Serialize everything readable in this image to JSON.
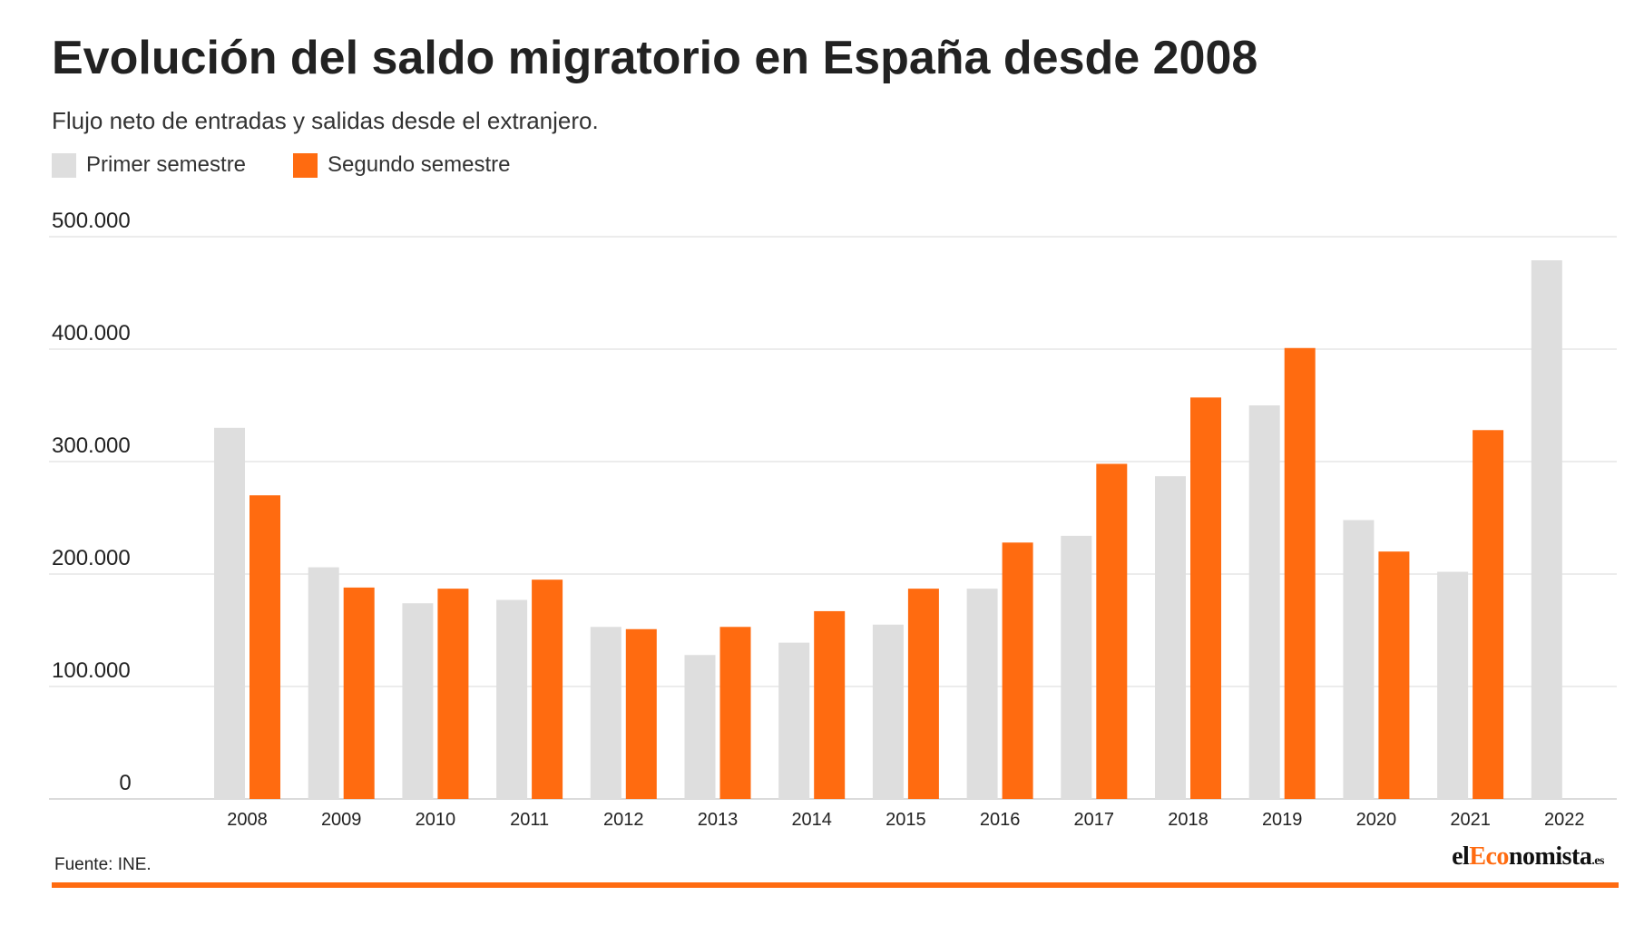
{
  "header": {
    "title": "Evolución del saldo migratorio en España desde 2008",
    "subtitle": "Flujo neto de entradas y salidas desde el extranjero."
  },
  "legend": {
    "items": [
      {
        "label": "Primer semestre",
        "color": "#dedede"
      },
      {
        "label": "Segundo semestre",
        "color": "#ff6b10"
      }
    ]
  },
  "footer": {
    "source": "Fuente: INE.",
    "logo": {
      "part1": "el",
      "part2": "Eco",
      "part3": "nomista",
      "part4": ".es"
    },
    "rule_color": "#ff6b10"
  },
  "chart_data": {
    "type": "bar",
    "categories": [
      "2008",
      "2009",
      "2010",
      "2011",
      "2012",
      "2013",
      "2014",
      "2015",
      "2016",
      "2017",
      "2018",
      "2019",
      "2020",
      "2021",
      "2022"
    ],
    "series": [
      {
        "name": "Primer semestre",
        "color": "#dedede",
        "values": [
          330000,
          206000,
          174000,
          177000,
          153000,
          128000,
          139000,
          155000,
          187000,
          234000,
          287000,
          350000,
          248000,
          202000,
          479000
        ]
      },
      {
        "name": "Segundo semestre",
        "color": "#ff6b10",
        "values": [
          270000,
          188000,
          187000,
          195000,
          151000,
          153000,
          167000,
          187000,
          228000,
          298000,
          357000,
          401000,
          220000,
          328000,
          null
        ]
      }
    ],
    "yticks": [
      0,
      100000,
      200000,
      300000,
      400000,
      500000
    ],
    "ytick_labels": [
      "0",
      "100.000",
      "200.000",
      "300.000",
      "400.000",
      "500.000"
    ],
    "ylim": [
      0,
      500000
    ],
    "grid": true,
    "legend_position": "top-left"
  }
}
